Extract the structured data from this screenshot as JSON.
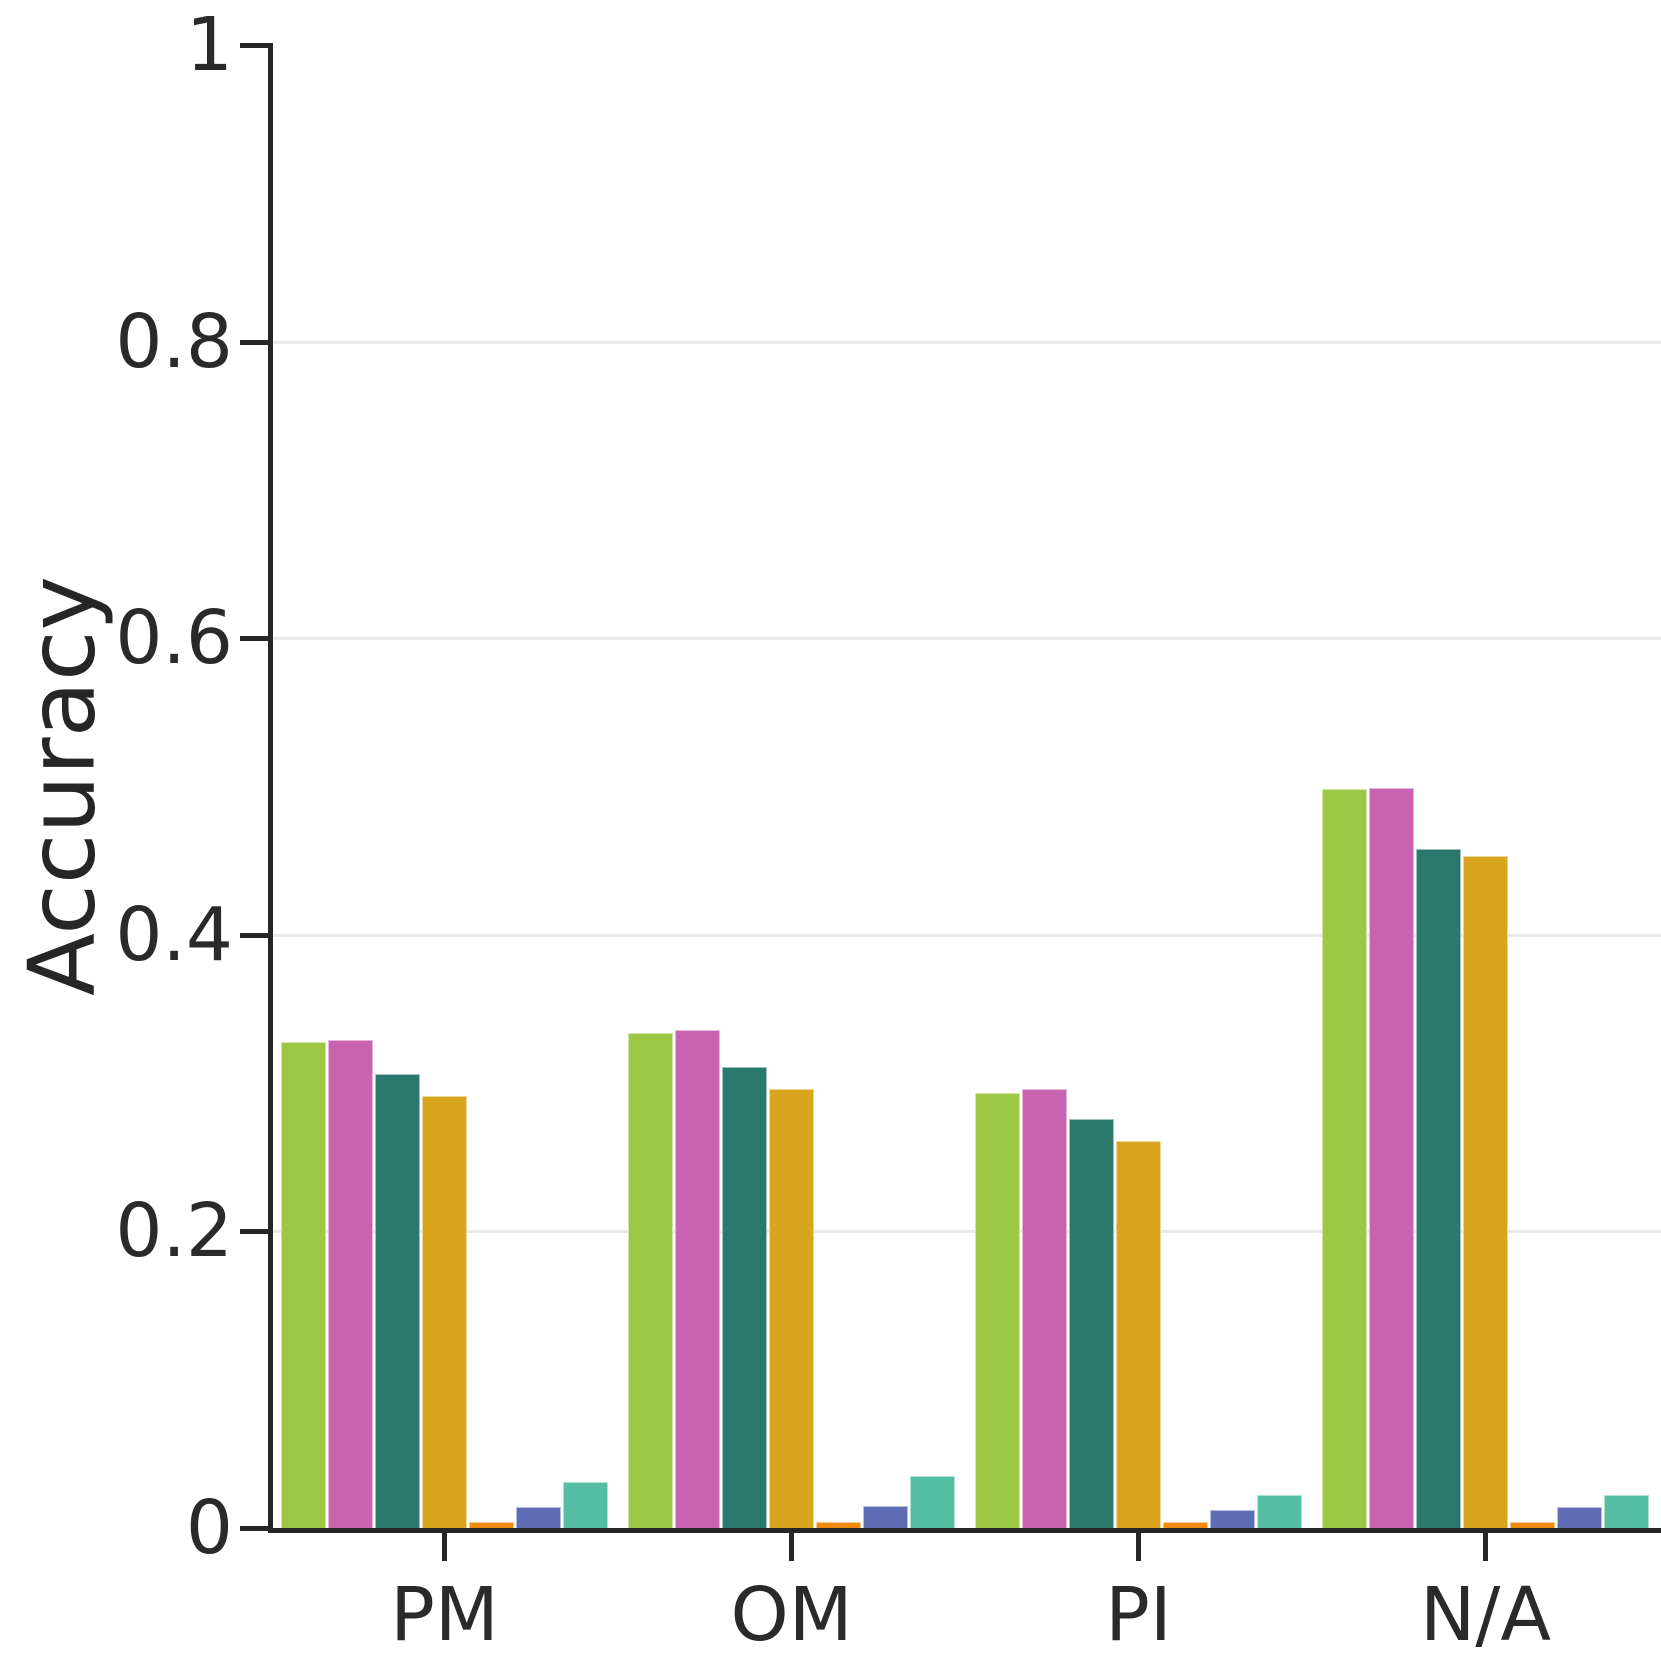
{
  "figure": {
    "ylabel": "Accuracy",
    "x_tick_labels": [
      "PM",
      "OM",
      "PI",
      "N/A"
    ],
    "y_tick_labels": [
      "0",
      "0.2",
      "0.4",
      "0.6",
      "0.8",
      "1"
    ]
  },
  "colors": {
    "background": "#ffffff",
    "spine": "#262626",
    "tick_text": "#2a2a2a",
    "gridline": "#e9e9e9"
  },
  "chart_data": {
    "type": "bar",
    "title": "",
    "xlabel": "",
    "ylabel": "Accuracy",
    "categories": [
      "PM",
      "OM",
      "PI",
      "N/A"
    ],
    "ylim": [
      0,
      1
    ],
    "yticks": [
      0,
      0.2,
      0.4,
      0.6,
      0.8,
      1
    ],
    "grid": "horizontal gridlines at 0.2, 0.4, 0.6, 0.8",
    "legend_position": "none",
    "series": [
      {
        "name": "yellow-green",
        "color": "#9CC843",
        "values": [
          0.328,
          0.334,
          0.293,
          0.498
        ]
      },
      {
        "name": "magenta",
        "color": "#C963AF",
        "values": [
          0.329,
          0.336,
          0.296,
          0.499
        ]
      },
      {
        "name": "teal",
        "color": "#2B796C",
        "values": [
          0.306,
          0.311,
          0.276,
          0.458
        ]
      },
      {
        "name": "gold",
        "color": "#D9A41E",
        "values": [
          0.291,
          0.296,
          0.261,
          0.453
        ]
      },
      {
        "name": "orange",
        "color": "#F08A0C",
        "values": [
          0.004,
          0.004,
          0.004,
          0.004
        ]
      },
      {
        "name": "slate-blue",
        "color": "#5F6DB4",
        "values": [
          0.014,
          0.015,
          0.012,
          0.014
        ]
      },
      {
        "name": "mint",
        "color": "#55BDA2",
        "values": [
          0.031,
          0.035,
          0.022,
          0.022
        ]
      }
    ]
  }
}
